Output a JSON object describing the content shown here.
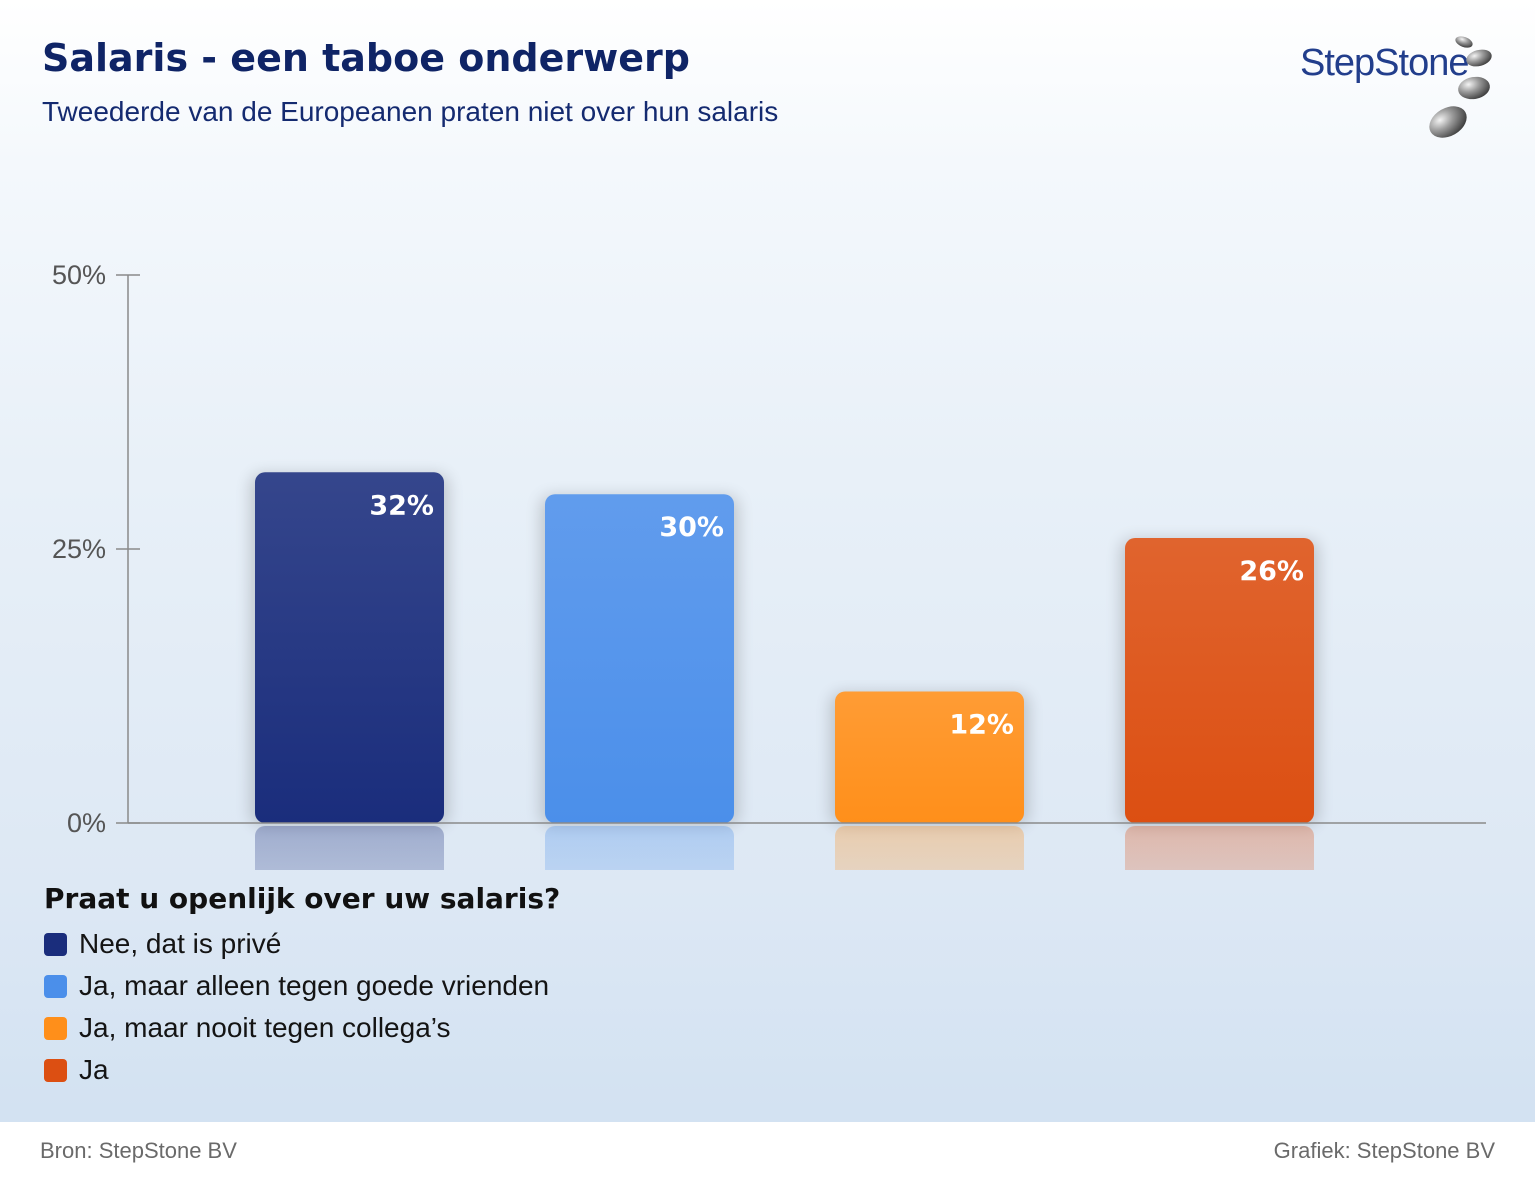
{
  "header": {
    "title": "Salaris - een taboe onderwerp",
    "subtitle": "Tweederde van de Europeanen praten niet over hun salaris"
  },
  "logo": {
    "text": "StepStone"
  },
  "chart_data": {
    "type": "bar",
    "categories": [
      "Nee, dat is privé",
      "Ja, maar alleen tegen goede vrienden",
      "Ja, maar nooit tegen collega’s",
      "Ja"
    ],
    "values": [
      32,
      30,
      12,
      26
    ],
    "value_labels": [
      "32%",
      "30%",
      "12%",
      "26%"
    ],
    "colors": [
      "#1a2d7c",
      "#4b8fea",
      "#ff8f1a",
      "#dc4f12"
    ],
    "ylim": [
      0,
      50
    ],
    "yticks": [
      0,
      25,
      50
    ],
    "ytick_labels": [
      "0%",
      "25%",
      "50%"
    ],
    "grid": false,
    "legend_placement": "bottom-left",
    "legend_title": "Praat u openlijk over uw salaris?"
  },
  "footer": {
    "source": "Bron: StepStone BV",
    "credit": "Grafiek: StepStone BV"
  }
}
